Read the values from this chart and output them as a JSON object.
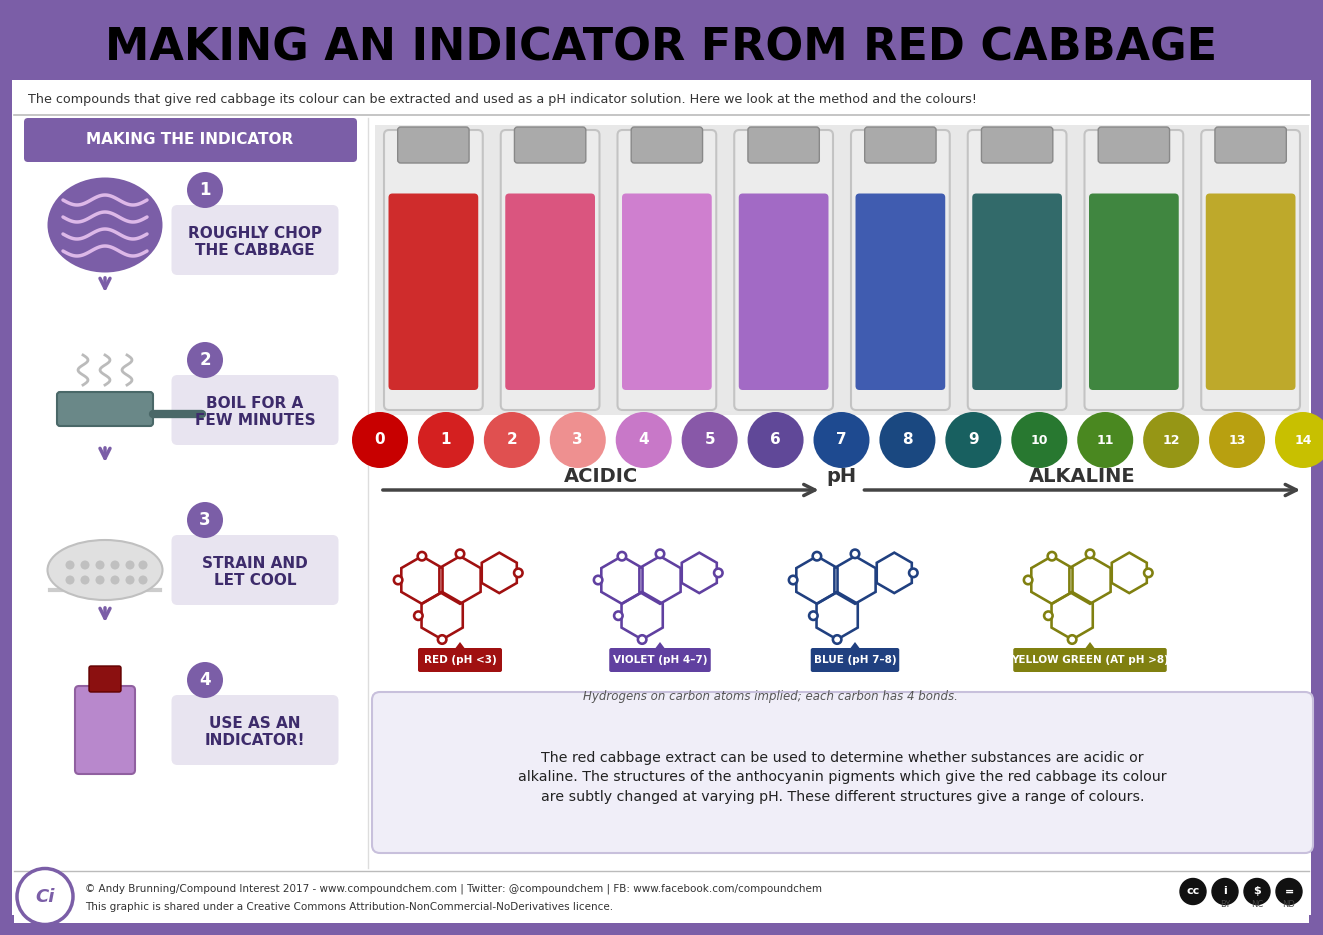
{
  "title": "MAKING AN INDICATOR FROM RED CABBAGE",
  "subtitle": "The compounds that give red cabbage its colour can be extracted and used as a pH indicator solution. Here we look at the method and the colours!",
  "border_color": "#7B5EA7",
  "bg_color": "#ffffff",
  "purple": "#7B5EA7",
  "dark_purple": "#3D2B6B",
  "light_purple_bg": "#E8E4F0",
  "section_header_text": "MAKING THE INDICATOR",
  "steps": [
    {
      "num": "1",
      "text": "ROUGHLY CHOP\nTHE CABBAGE"
    },
    {
      "num": "2",
      "text": "BOIL FOR A\nFEW MINUTES"
    },
    {
      "num": "3",
      "text": "STRAIN AND\nLET COOL"
    },
    {
      "num": "4",
      "text": "USE AS AN\nINDICATOR!"
    }
  ],
  "ph_values": [
    "0",
    "1",
    "2",
    "3",
    "4",
    "5",
    "6",
    "7",
    "8",
    "9",
    "10",
    "11",
    "12",
    "13",
    "14"
  ],
  "ph_colors": [
    "#C80000",
    "#D42020",
    "#E05050",
    "#EE9090",
    "#C878C8",
    "#8858A8",
    "#604898",
    "#1E4A90",
    "#1A4880",
    "#186060",
    "#287830",
    "#4A8820",
    "#969615",
    "#B8A010",
    "#C8C000"
  ],
  "acidic_label": "ACIDIC",
  "alkaline_label": "ALKALINE",
  "ph_label": "pH",
  "molecule_labels": [
    {
      "text": "RED (pH <3)",
      "color": "#A01010"
    },
    {
      "text": "VIOLET (pH 4–7)",
      "color": "#6040A0"
    },
    {
      "text": "BLUE (pH 7–8)",
      "color": "#204080"
    },
    {
      "text": "YELLOW GREEN (AT pH >8)",
      "color": "#808010"
    }
  ],
  "note_text": "Hydrogens on carbon atoms implied; each carbon has 4 bonds.",
  "box_text": "The red cabbage extract can be used to determine whether substances are acidic or\nalkaline. The structures of the anthocyanin pigments which give the red cabbage its colour\nare subtly changed at varying pH. These different structures give a range of colours.",
  "footer_text1": "© Andy Brunning/Compound Interest 2017 - www.compoundchem.com | Twitter: @compoundchem | FB: www.facebook.com/compoundchem",
  "footer_text2": "This graphic is shared under a Creative Commons Attribution-NonCommercial-NoDerivatives licence.",
  "bottle_photo_colors": [
    "#CC1111",
    "#D84070",
    "#CC70CC",
    "#9858C0",
    "#2848A8",
    "#185858",
    "#287828",
    "#B8A010",
    "#C8C000"
  ],
  "arrow_color": "#555555"
}
